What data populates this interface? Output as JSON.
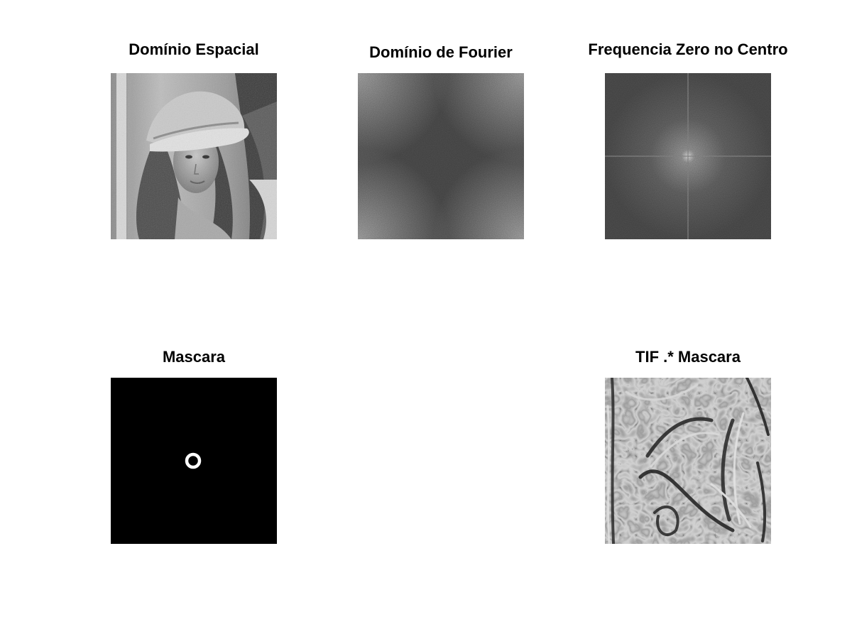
{
  "figure": {
    "panels": [
      {
        "id": "spatial",
        "title": "Domínio Espacial"
      },
      {
        "id": "fourier",
        "title": "Domínio de Fourier"
      },
      {
        "id": "shifted",
        "title": "Frequencia Zero no Centro"
      },
      {
        "id": "mask",
        "title": "Mascara"
      },
      {
        "id": "filtered",
        "title": "TIF .* Mascara"
      }
    ]
  }
}
